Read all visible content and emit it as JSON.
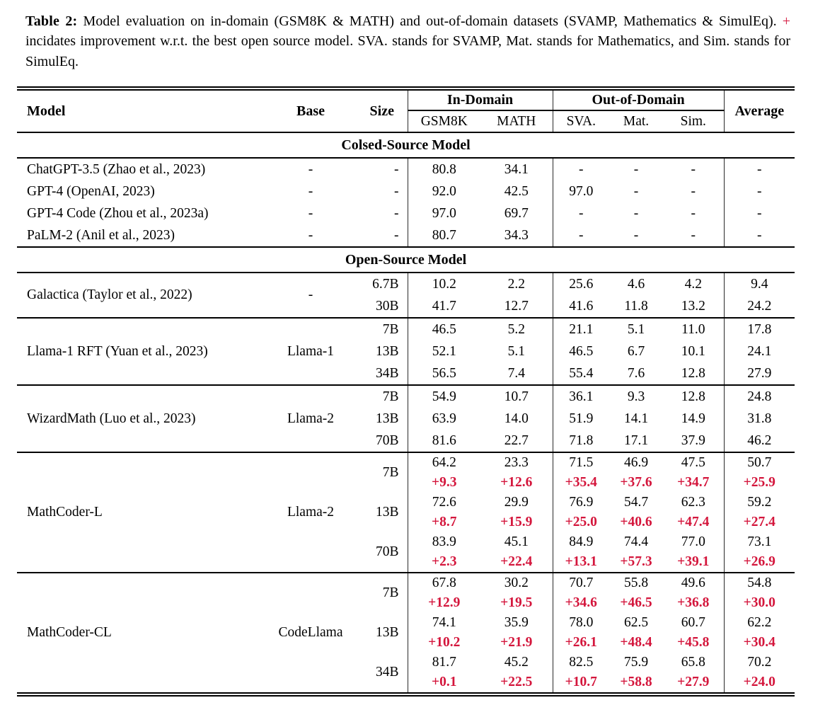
{
  "caption": {
    "label": "Table 2:",
    "before_plus": " Model evaluation on in-domain (GSM8K & MATH) and out-of-domain datasets (SVAMP, Mathematics & SimulEq). ",
    "plus": "+",
    "after_plus": " incidates improvement w.r.t. the best open source model. SVA. stands for SVAMP, Mat. stands for Mathematics, and Sim. stands for SimulEq."
  },
  "colors": {
    "accent_red": "#d4163c"
  },
  "table": {
    "header": {
      "model": "Model",
      "base": "Base",
      "size": "Size",
      "in_domain": "In-Domain",
      "out_of_domain": "Out-of-Domain",
      "average": "Average",
      "gsm8k": "GSM8K",
      "math": "MATH",
      "sva": "SVA.",
      "mat": "Mat.",
      "sim": "Sim."
    },
    "sections": [
      {
        "title": "Colsed-Source Model",
        "groups": [
          {
            "model": "ChatGPT-3.5 (Zhao et al., 2023)",
            "base": "-",
            "rows": [
              {
                "size": "-",
                "values": [
                  "80.8",
                  "34.1",
                  "-",
                  "-",
                  "-",
                  "-"
                ]
              }
            ]
          },
          {
            "model": "GPT-4 (OpenAI, 2023)",
            "base": "-",
            "rows": [
              {
                "size": "-",
                "values": [
                  "92.0",
                  "42.5",
                  "97.0",
                  "-",
                  "-",
                  "-"
                ]
              }
            ]
          },
          {
            "model": "GPT-4 Code (Zhou et al., 2023a)",
            "base": "-",
            "rows": [
              {
                "size": "-",
                "values": [
                  "97.0",
                  "69.7",
                  "-",
                  "-",
                  "-",
                  "-"
                ]
              }
            ]
          },
          {
            "model": "PaLM-2 (Anil et al., 2023)",
            "base": "-",
            "rows": [
              {
                "size": "-",
                "values": [
                  "80.7",
                  "34.3",
                  "-",
                  "-",
                  "-",
                  "-"
                ]
              }
            ]
          }
        ]
      },
      {
        "title": "Open-Source Model",
        "groups": [
          {
            "model": "Galactica (Taylor et al., 2022)",
            "base": "-",
            "rows": [
              {
                "size": "6.7B",
                "values": [
                  "10.2",
                  "2.2",
                  "25.6",
                  "4.6",
                  "4.2",
                  "9.4"
                ]
              },
              {
                "size": "30B",
                "values": [
                  "41.7",
                  "12.7",
                  "41.6",
                  "11.8",
                  "13.2",
                  "24.2"
                ]
              }
            ]
          },
          {
            "model": "Llama-1 RFT (Yuan et al., 2023)",
            "base": "Llama-1",
            "rows": [
              {
                "size": "7B",
                "values": [
                  "46.5",
                  "5.2",
                  "21.1",
                  "5.1",
                  "11.0",
                  "17.8"
                ]
              },
              {
                "size": "13B",
                "values": [
                  "52.1",
                  "5.1",
                  "46.5",
                  "6.7",
                  "10.1",
                  "24.1"
                ]
              },
              {
                "size": "34B",
                "values": [
                  "56.5",
                  "7.4",
                  "55.4",
                  "7.6",
                  "12.8",
                  "27.9"
                ]
              }
            ]
          },
          {
            "model": "WizardMath (Luo et al., 2023)",
            "base": "Llama-2",
            "rows": [
              {
                "size": "7B",
                "values": [
                  "54.9",
                  "10.7",
                  "36.1",
                  "9.3",
                  "12.8",
                  "24.8"
                ]
              },
              {
                "size": "13B",
                "values": [
                  "63.9",
                  "14.0",
                  "51.9",
                  "14.1",
                  "14.9",
                  "31.8"
                ]
              },
              {
                "size": "70B",
                "values": [
                  "81.6",
                  "22.7",
                  "71.8",
                  "17.1",
                  "37.9",
                  "46.2"
                ]
              }
            ]
          },
          {
            "model": "MathCoder-L",
            "base": "Llama-2",
            "rows": [
              {
                "size": "7B",
                "values": [
                  "64.2",
                  "23.3",
                  "71.5",
                  "46.9",
                  "47.5",
                  "50.7"
                ],
                "improvements": [
                  "+9.3",
                  "+12.6",
                  "+35.4",
                  "+37.6",
                  "+34.7",
                  "+25.9"
                ]
              },
              {
                "size": "13B",
                "values": [
                  "72.6",
                  "29.9",
                  "76.9",
                  "54.7",
                  "62.3",
                  "59.2"
                ],
                "improvements": [
                  "+8.7",
                  "+15.9",
                  "+25.0",
                  "+40.6",
                  "+47.4",
                  "+27.4"
                ]
              },
              {
                "size": "70B",
                "values": [
                  "83.9",
                  "45.1",
                  "84.9",
                  "74.4",
                  "77.0",
                  "73.1"
                ],
                "improvements": [
                  "+2.3",
                  "+22.4",
                  "+13.1",
                  "+57.3",
                  "+39.1",
                  "+26.9"
                ]
              }
            ]
          },
          {
            "model": "MathCoder-CL",
            "base": "CodeLlama",
            "rows": [
              {
                "size": "7B",
                "values": [
                  "67.8",
                  "30.2",
                  "70.7",
                  "55.8",
                  "49.6",
                  "54.8"
                ],
                "improvements": [
                  "+12.9",
                  "+19.5",
                  "+34.6",
                  "+46.5",
                  "+36.8",
                  "+30.0"
                ]
              },
              {
                "size": "13B",
                "values": [
                  "74.1",
                  "35.9",
                  "78.0",
                  "62.5",
                  "60.7",
                  "62.2"
                ],
                "improvements": [
                  "+10.2",
                  "+21.9",
                  "+26.1",
                  "+48.4",
                  "+45.8",
                  "+30.4"
                ]
              },
              {
                "size": "34B",
                "values": [
                  "81.7",
                  "45.2",
                  "82.5",
                  "75.9",
                  "65.8",
                  "70.2"
                ],
                "improvements": [
                  "+0.1",
                  "+22.5",
                  "+10.7",
                  "+58.8",
                  "+27.9",
                  "+24.0"
                ]
              }
            ]
          }
        ]
      }
    ]
  }
}
